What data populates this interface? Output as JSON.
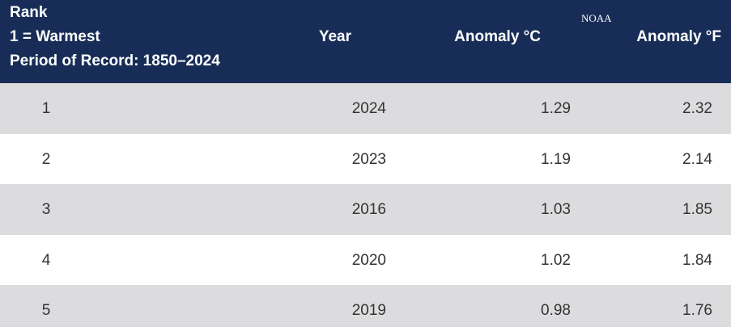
{
  "watermark": "NOAA",
  "table": {
    "columns": [
      [
        "Rank",
        "1 = Warmest",
        "Period of Record: 1850–2024"
      ],
      "Year",
      "Anomaly °C",
      "Anomaly °F"
    ],
    "rows": [
      [
        1,
        2024,
        1.29,
        2.32
      ],
      [
        2,
        2023,
        1.19,
        2.14
      ],
      [
        3,
        2016,
        1.03,
        1.85
      ],
      [
        4,
        2020,
        1.02,
        1.84
      ],
      [
        5,
        2019,
        0.98,
        1.76
      ]
    ]
  }
}
